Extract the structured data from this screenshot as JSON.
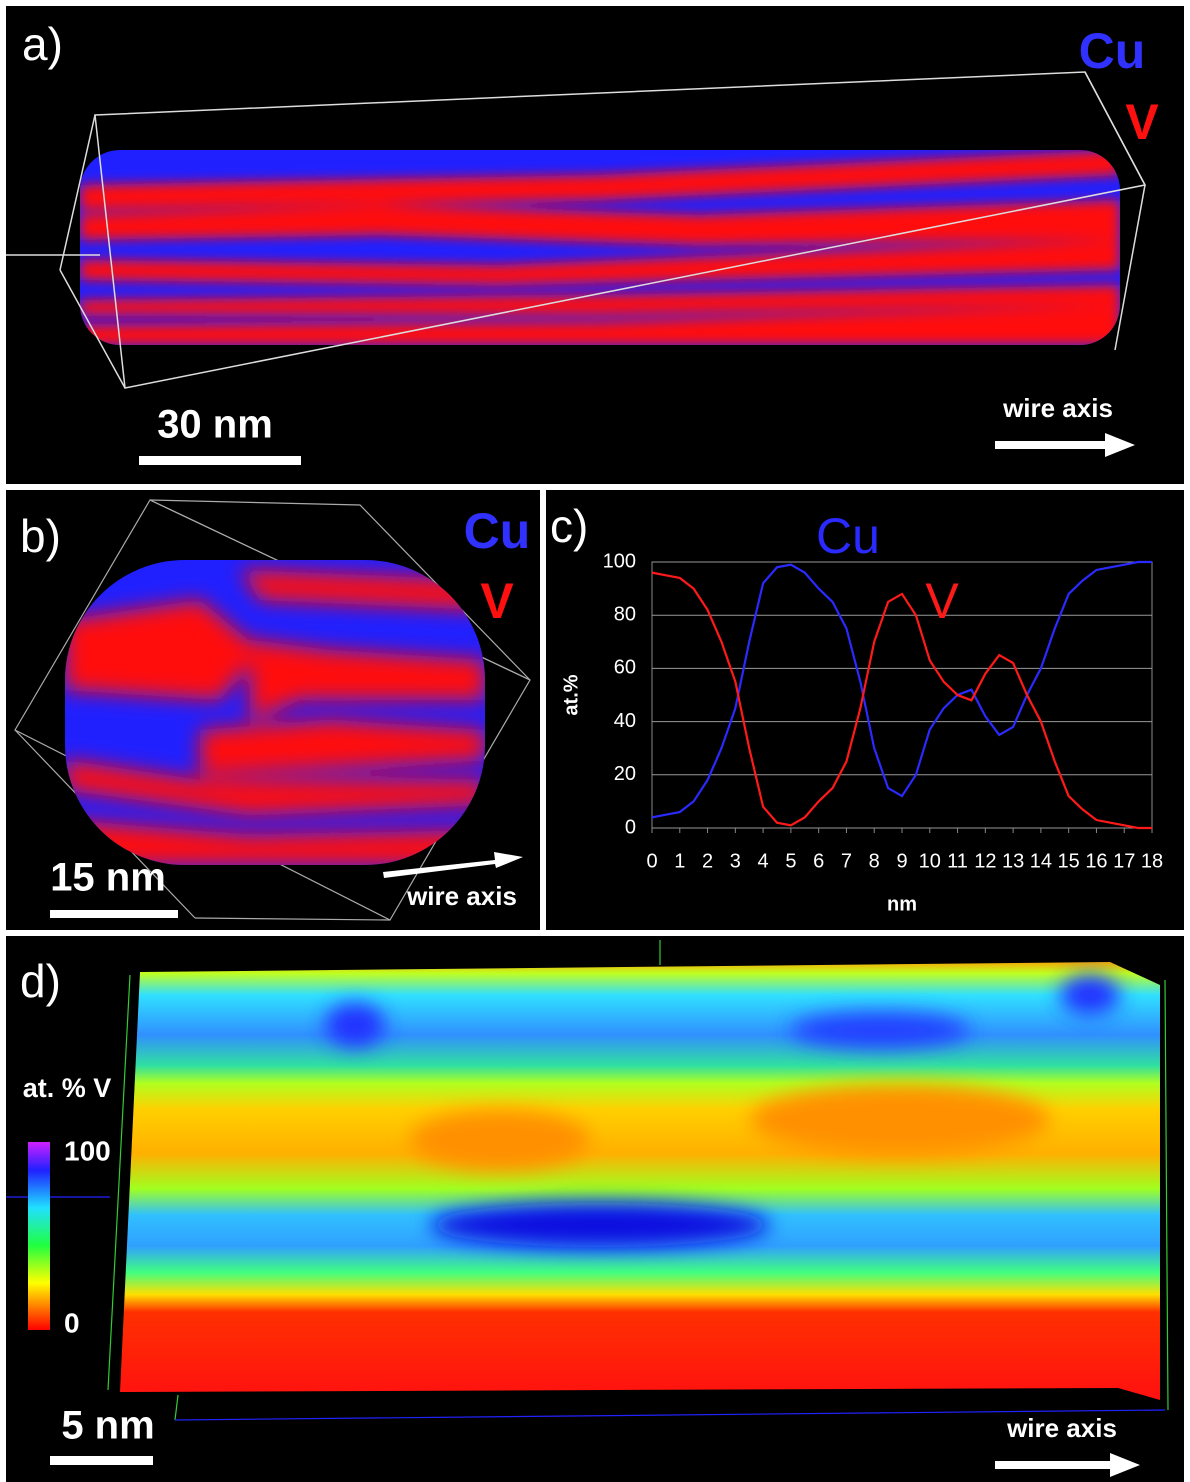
{
  "panel_a": {
    "label": "a)",
    "legend": [
      "Cu",
      "V"
    ],
    "scale_bar": "30 nm",
    "axis_note": "wire axis"
  },
  "panel_b": {
    "label": "b)",
    "legend": [
      "Cu",
      "V"
    ],
    "scale_bar": "15 nm",
    "axis_note": "wire axis"
  },
  "panel_c": {
    "label": "c)"
  },
  "panel_d": {
    "label": "d)",
    "colorbar_title": "at. % V",
    "colorbar_ticks": [
      100,
      0
    ],
    "scale_bar": "5 nm",
    "axis_note": "wire axis"
  },
  "chart_data": {
    "type": "line",
    "xlabel": "nm",
    "ylabel": "at.%",
    "x": [
      0,
      0.5,
      1,
      1.5,
      2,
      2.5,
      3,
      3.5,
      4,
      4.5,
      5,
      5.5,
      6,
      6.5,
      7,
      7.5,
      8,
      8.5,
      9,
      9.5,
      10,
      10.5,
      11,
      11.5,
      12,
      12.5,
      13,
      13.5,
      14,
      14.5,
      15,
      15.5,
      16,
      16.5,
      17,
      17.5,
      18
    ],
    "series": [
      {
        "name": "Cu",
        "color": "#2a2aff",
        "values": [
          4,
          5,
          6,
          10,
          18,
          30,
          45,
          70,
          92,
          98,
          99,
          96,
          90,
          85,
          75,
          55,
          30,
          15,
          12,
          20,
          37,
          45,
          50,
          52,
          42,
          35,
          38,
          50,
          60,
          75,
          88,
          93,
          97,
          98,
          99,
          100,
          100
        ]
      },
      {
        "name": "V",
        "color": "#ff1a1a",
        "values": [
          96,
          95,
          94,
          90,
          82,
          70,
          55,
          30,
          8,
          2,
          1,
          4,
          10,
          15,
          25,
          45,
          70,
          85,
          88,
          80,
          63,
          55,
          50,
          48,
          58,
          65,
          62,
          50,
          40,
          25,
          12,
          7,
          3,
          2,
          1,
          0,
          0
        ]
      }
    ],
    "xlim": [
      0,
      18
    ],
    "ylim": [
      0,
      100
    ],
    "xticks": [
      0,
      1,
      2,
      3,
      4,
      5,
      6,
      7,
      8,
      9,
      10,
      11,
      12,
      13,
      14,
      15,
      16,
      17,
      18
    ],
    "yticks": [
      0,
      20,
      40,
      60,
      80,
      100
    ],
    "grid": true
  }
}
